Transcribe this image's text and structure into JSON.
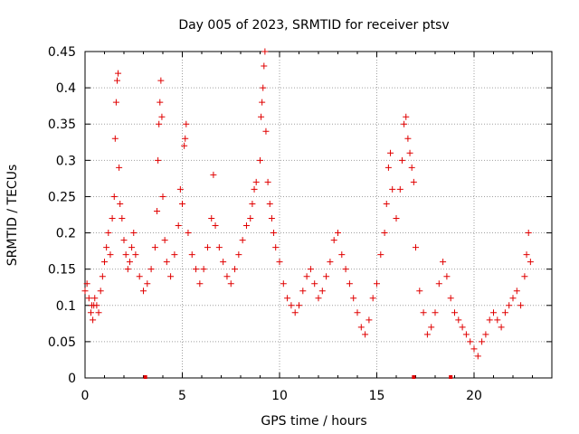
{
  "chart_data": {
    "type": "scatter",
    "title": "Day 005 of 2023, SRMTID for receiver ptsv",
    "xlabel": "GPS time / hours",
    "ylabel": "SRMTID / TECUs",
    "xlim": [
      0,
      24
    ],
    "ylim": [
      0,
      0.45
    ],
    "x_ticks": [
      0,
      5,
      10,
      15,
      20
    ],
    "y_ticks": [
      0,
      0.05,
      0.1,
      0.15,
      0.2,
      0.25,
      0.3,
      0.35,
      0.4,
      0.45
    ],
    "x_tick_labels": [
      "0",
      "5",
      "10",
      "15",
      "20"
    ],
    "y_tick_labels": [
      "0",
      "0.05",
      "0.1",
      "0.15",
      "0.2",
      "0.25",
      "0.3",
      "0.35",
      "0.4",
      "0.45"
    ],
    "grid": true,
    "marker": "+",
    "color": "#e00000",
    "series": [
      {
        "name": "SRMTID",
        "points": [
          [
            0.0,
            0.12
          ],
          [
            0.1,
            0.13
          ],
          [
            0.2,
            0.11
          ],
          [
            0.3,
            0.09
          ],
          [
            0.35,
            0.1
          ],
          [
            0.4,
            0.08
          ],
          [
            0.45,
            0.1
          ],
          [
            0.5,
            0.11
          ],
          [
            0.6,
            0.1
          ],
          [
            0.7,
            0.09
          ],
          [
            0.8,
            0.12
          ],
          [
            0.9,
            0.14
          ],
          [
            1.0,
            0.16
          ],
          [
            1.1,
            0.18
          ],
          [
            1.2,
            0.2
          ],
          [
            1.3,
            0.17
          ],
          [
            1.4,
            0.22
          ],
          [
            1.5,
            0.25
          ],
          [
            1.55,
            0.33
          ],
          [
            1.6,
            0.38
          ],
          [
            1.65,
            0.41
          ],
          [
            1.7,
            0.42
          ],
          [
            1.75,
            0.29
          ],
          [
            1.8,
            0.24
          ],
          [
            1.9,
            0.22
          ],
          [
            2.0,
            0.19
          ],
          [
            2.1,
            0.17
          ],
          [
            2.2,
            0.15
          ],
          [
            2.3,
            0.16
          ],
          [
            2.4,
            0.18
          ],
          [
            2.5,
            0.2
          ],
          [
            2.6,
            0.17
          ],
          [
            2.8,
            0.14
          ],
          [
            3.0,
            0.12
          ],
          [
            3.2,
            0.13
          ],
          [
            3.4,
            0.15
          ],
          [
            3.6,
            0.18
          ],
          [
            3.7,
            0.23
          ],
          [
            3.75,
            0.3
          ],
          [
            3.8,
            0.35
          ],
          [
            3.85,
            0.38
          ],
          [
            3.9,
            0.41
          ],
          [
            3.95,
            0.36
          ],
          [
            4.0,
            0.25
          ],
          [
            4.1,
            0.19
          ],
          [
            4.2,
            0.16
          ],
          [
            4.4,
            0.14
          ],
          [
            4.6,
            0.17
          ],
          [
            4.8,
            0.21
          ],
          [
            4.9,
            0.26
          ],
          [
            5.0,
            0.24
          ],
          [
            5.1,
            0.32
          ],
          [
            5.15,
            0.33
          ],
          [
            5.2,
            0.35
          ],
          [
            5.3,
            0.2
          ],
          [
            5.5,
            0.17
          ],
          [
            5.7,
            0.15
          ],
          [
            5.9,
            0.13
          ],
          [
            6.1,
            0.15
          ],
          [
            6.3,
            0.18
          ],
          [
            6.5,
            0.22
          ],
          [
            6.6,
            0.28
          ],
          [
            6.7,
            0.21
          ],
          [
            6.9,
            0.18
          ],
          [
            7.1,
            0.16
          ],
          [
            7.3,
            0.14
          ],
          [
            7.5,
            0.13
          ],
          [
            7.7,
            0.15
          ],
          [
            7.9,
            0.17
          ],
          [
            8.1,
            0.19
          ],
          [
            8.3,
            0.21
          ],
          [
            8.5,
            0.22
          ],
          [
            8.6,
            0.24
          ],
          [
            8.7,
            0.26
          ],
          [
            8.8,
            0.27
          ],
          [
            9.0,
            0.3
          ],
          [
            9.05,
            0.36
          ],
          [
            9.1,
            0.38
          ],
          [
            9.15,
            0.4
          ],
          [
            9.2,
            0.43
          ],
          [
            9.25,
            0.45
          ],
          [
            9.3,
            0.34
          ],
          [
            9.4,
            0.27
          ],
          [
            9.5,
            0.24
          ],
          [
            9.6,
            0.22
          ],
          [
            9.7,
            0.2
          ],
          [
            9.8,
            0.18
          ],
          [
            10.0,
            0.16
          ],
          [
            10.2,
            0.13
          ],
          [
            10.4,
            0.11
          ],
          [
            10.6,
            0.1
          ],
          [
            10.8,
            0.09
          ],
          [
            11.0,
            0.1
          ],
          [
            11.2,
            0.12
          ],
          [
            11.4,
            0.14
          ],
          [
            11.6,
            0.15
          ],
          [
            11.8,
            0.13
          ],
          [
            12.0,
            0.11
          ],
          [
            12.2,
            0.12
          ],
          [
            12.4,
            0.14
          ],
          [
            12.6,
            0.16
          ],
          [
            12.8,
            0.19
          ],
          [
            13.0,
            0.2
          ],
          [
            13.2,
            0.17
          ],
          [
            13.4,
            0.15
          ],
          [
            13.6,
            0.13
          ],
          [
            13.8,
            0.11
          ],
          [
            14.0,
            0.09
          ],
          [
            14.2,
            0.07
          ],
          [
            14.4,
            0.06
          ],
          [
            14.6,
            0.08
          ],
          [
            14.8,
            0.11
          ],
          [
            15.0,
            0.13
          ],
          [
            15.2,
            0.17
          ],
          [
            15.4,
            0.2
          ],
          [
            15.5,
            0.24
          ],
          [
            15.6,
            0.29
          ],
          [
            15.7,
            0.31
          ],
          [
            15.8,
            0.26
          ],
          [
            16.0,
            0.22
          ],
          [
            16.2,
            0.26
          ],
          [
            16.3,
            0.3
          ],
          [
            16.4,
            0.35
          ],
          [
            16.5,
            0.36
          ],
          [
            16.6,
            0.33
          ],
          [
            16.7,
            0.31
          ],
          [
            16.8,
            0.29
          ],
          [
            16.9,
            0.27
          ],
          [
            17.0,
            0.18
          ],
          [
            17.2,
            0.12
          ],
          [
            17.4,
            0.09
          ],
          [
            17.6,
            0.06
          ],
          [
            17.8,
            0.07
          ],
          [
            18.0,
            0.09
          ],
          [
            18.2,
            0.13
          ],
          [
            18.4,
            0.16
          ],
          [
            18.6,
            0.14
          ],
          [
            18.8,
            0.11
          ],
          [
            19.0,
            0.09
          ],
          [
            19.2,
            0.08
          ],
          [
            19.4,
            0.07
          ],
          [
            19.6,
            0.06
          ],
          [
            19.8,
            0.05
          ],
          [
            20.0,
            0.04
          ],
          [
            20.2,
            0.03
          ],
          [
            20.4,
            0.05
          ],
          [
            20.6,
            0.06
          ],
          [
            20.8,
            0.08
          ],
          [
            21.0,
            0.09
          ],
          [
            21.2,
            0.08
          ],
          [
            21.4,
            0.07
          ],
          [
            21.6,
            0.09
          ],
          [
            21.8,
            0.1
          ],
          [
            22.0,
            0.11
          ],
          [
            22.2,
            0.12
          ],
          [
            22.4,
            0.1
          ],
          [
            22.6,
            0.14
          ],
          [
            22.7,
            0.17
          ],
          [
            22.8,
            0.2
          ],
          [
            22.9,
            0.16
          ]
        ]
      }
    ],
    "gap_markers_x": [
      3.1,
      16.9,
      18.8
    ]
  }
}
